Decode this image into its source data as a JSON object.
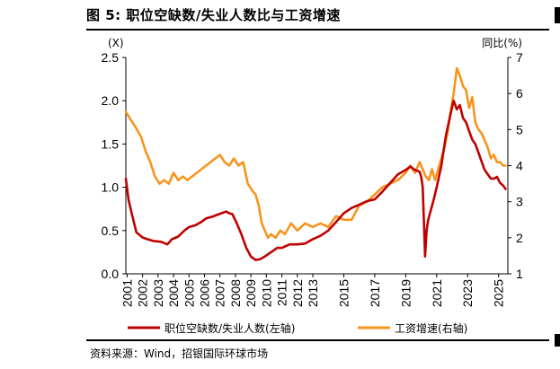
{
  "header": {
    "title": "图 5: 职位空缺数/失业人数比与工资增速"
  },
  "footer": {
    "source": "资料来源：Wind，招银国际环球市场"
  },
  "chart_data": {
    "type": "line",
    "left_axis": {
      "unit": "(X)",
      "ylim": [
        0,
        2.5
      ],
      "ticks": [
        "0.0",
        "0.5",
        "1.0",
        "1.5",
        "2.0",
        "2.5"
      ]
    },
    "right_axis": {
      "unit": "同比(%)",
      "ylim": [
        1,
        7
      ],
      "ticks": [
        "1",
        "2",
        "3",
        "4",
        "5",
        "6",
        "7"
      ]
    },
    "x_ticks": [
      "2001",
      "2002",
      "2003",
      "2004",
      "2005",
      "2006",
      "2007",
      "2008",
      "2009",
      "2010",
      "2011",
      "2012",
      "2013",
      "2015",
      "2017",
      "2019",
      "2021",
      "2023",
      "2025"
    ],
    "colors": {
      "ratio": "#c00000",
      "wage": "#f7941d"
    },
    "series": [
      {
        "name": "职位空缺数/失业人数(左轴)",
        "axis": "left",
        "x": [
          2000.92,
          2001.1,
          2001.3,
          2001.6,
          2002.0,
          2002.3,
          2002.7,
          2003.2,
          2003.6,
          2003.9,
          2004.3,
          2004.7,
          2005.0,
          2005.4,
          2005.8,
          2006.1,
          2006.5,
          2006.8,
          2007.1,
          2007.4,
          2007.6,
          2007.8,
          2008.1,
          2008.4,
          2008.7,
          2009.0,
          2009.3,
          2009.6,
          2009.9,
          2010.3,
          2010.7,
          2011.0,
          2011.5,
          2012.0,
          2012.5,
          2013.0,
          2013.5,
          2014.0,
          2014.5,
          2015.0,
          2015.5,
          2016.0,
          2016.5,
          2017.0,
          2017.5,
          2018.0,
          2018.5,
          2019.0,
          2019.3,
          2019.6,
          2019.9,
          2020.0,
          2020.1,
          2020.25,
          2020.35,
          2020.45,
          2020.6,
          2020.8,
          2021.0,
          2021.3,
          2021.6,
          2021.9,
          2022.1,
          2022.3,
          2022.5,
          2022.7,
          2022.9,
          2023.1,
          2023.3,
          2023.5,
          2023.7,
          2023.9,
          2024.1,
          2024.3,
          2024.5,
          2024.7,
          2024.9,
          2025.1,
          2025.3,
          2025.45
        ],
        "values": [
          1.1,
          0.85,
          0.7,
          0.48,
          0.42,
          0.4,
          0.38,
          0.37,
          0.34,
          0.4,
          0.43,
          0.5,
          0.54,
          0.56,
          0.6,
          0.64,
          0.66,
          0.68,
          0.7,
          0.72,
          0.7,
          0.69,
          0.58,
          0.45,
          0.3,
          0.2,
          0.16,
          0.17,
          0.2,
          0.25,
          0.3,
          0.3,
          0.34,
          0.34,
          0.35,
          0.4,
          0.44,
          0.5,
          0.6,
          0.7,
          0.76,
          0.8,
          0.84,
          0.86,
          0.95,
          1.05,
          1.15,
          1.2,
          1.24,
          1.2,
          1.18,
          1.12,
          1.0,
          0.2,
          0.5,
          0.62,
          0.72,
          0.85,
          1.0,
          1.25,
          1.6,
          1.85,
          2.0,
          1.9,
          1.95,
          1.8,
          1.75,
          1.65,
          1.55,
          1.5,
          1.4,
          1.3,
          1.2,
          1.15,
          1.1,
          1.1,
          1.12,
          1.05,
          1.02,
          0.98
        ]
      },
      {
        "name": "工资增速(右轴)",
        "axis": "right",
        "x": [
          2000.92,
          2001.2,
          2001.5,
          2001.9,
          2002.2,
          2002.5,
          2002.8,
          2003.1,
          2003.4,
          2003.7,
          2004.0,
          2004.3,
          2004.6,
          2004.9,
          2005.2,
          2005.5,
          2005.8,
          2006.1,
          2006.4,
          2006.7,
          2007.0,
          2007.3,
          2007.6,
          2007.9,
          2008.2,
          2008.5,
          2008.8,
          2009.1,
          2009.3,
          2009.5,
          2009.7,
          2009.9,
          2010.1,
          2010.3,
          2010.6,
          2010.9,
          2011.2,
          2011.6,
          2012.0,
          2012.5,
          2013.0,
          2013.5,
          2014.0,
          2014.5,
          2015.0,
          2015.5,
          2016.0,
          2016.5,
          2017.0,
          2017.5,
          2018.0,
          2018.5,
          2019.0,
          2019.3,
          2019.6,
          2019.9,
          2020.1,
          2020.3,
          2020.5,
          2020.7,
          2020.9,
          2021.1,
          2021.3,
          2021.5,
          2021.7,
          2021.9,
          2022.1,
          2022.3,
          2022.5,
          2022.7,
          2022.9,
          2023.1,
          2023.3,
          2023.5,
          2023.7,
          2023.9,
          2024.1,
          2024.3,
          2024.5,
          2024.7,
          2024.9,
          2025.1,
          2025.3,
          2025.45
        ],
        "values": [
          5.5,
          5.3,
          5.1,
          4.8,
          4.4,
          4.1,
          3.7,
          3.5,
          3.6,
          3.5,
          3.8,
          3.6,
          3.7,
          3.6,
          3.7,
          3.8,
          3.9,
          4.0,
          4.1,
          4.2,
          4.3,
          4.1,
          4.0,
          4.2,
          4.0,
          4.1,
          3.5,
          3.3,
          3.2,
          2.9,
          2.4,
          2.2,
          2.0,
          2.1,
          2.0,
          2.2,
          2.1,
          2.4,
          2.2,
          2.4,
          2.3,
          2.4,
          2.3,
          2.6,
          2.5,
          2.5,
          2.9,
          3.0,
          3.2,
          3.4,
          3.5,
          3.6,
          3.8,
          4.0,
          3.8,
          4.1,
          3.9,
          3.7,
          3.6,
          3.9,
          3.6,
          3.9,
          4.2,
          4.5,
          4.9,
          5.5,
          6.0,
          6.7,
          6.5,
          6.2,
          6.1,
          5.6,
          5.9,
          5.2,
          5.0,
          4.9,
          4.7,
          4.5,
          4.2,
          4.3,
          4.1,
          4.1,
          4.0,
          4.0
        ]
      }
    ]
  }
}
